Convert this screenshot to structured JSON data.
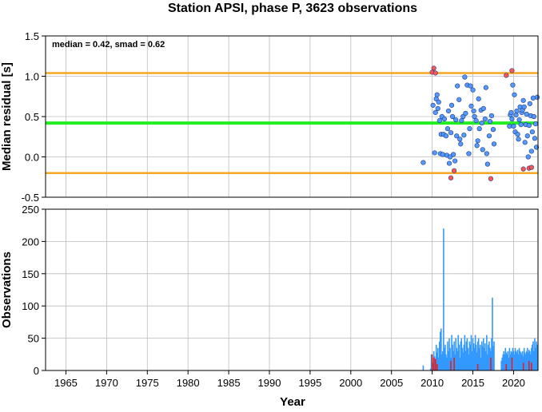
{
  "title": "Station APSI, phase P, 3623 observations",
  "colors": {
    "median_line": "#22ee22",
    "smad_lines": "#f5a623",
    "inlier_point": "#5599ff",
    "outlier_point": "#ff5555",
    "hist_total": "#3399ff",
    "hist_outlier": "#e02020",
    "grid": "#bbbbbb"
  },
  "chart_data": [
    {
      "type": "scatter",
      "panel": "top",
      "ylabel": "Median residual [s]",
      "annotation": "median = 0.42, smad = 0.62",
      "xlim": [
        1962.5,
        2023
      ],
      "ylim": [
        -0.5,
        1.5
      ],
      "yticks": [
        "-0.5",
        "0.0",
        "0.5",
        "1.0",
        "1.5"
      ],
      "ytick_values": [
        -0.5,
        0.0,
        0.5,
        1.0,
        1.5
      ],
      "median": 0.42,
      "upper_bound": 1.04,
      "lower_bound": -0.2,
      "grid": true,
      "series": [
        {
          "role": "inliers",
          "x": [
            2008.9,
            2010.1,
            2010.3,
            2010.4,
            2010.5,
            2010.6,
            2010.7,
            2010.8,
            2010.9,
            2011.0,
            2011.1,
            2011.2,
            2011.3,
            2011.4,
            2011.5,
            2011.7,
            2011.8,
            2011.9,
            2012.0,
            2012.1,
            2012.2,
            2012.3,
            2012.4,
            2012.5,
            2012.6,
            2012.8,
            2012.9,
            2013.0,
            2013.1,
            2013.3,
            2013.4,
            2013.5,
            2013.6,
            2013.8,
            2013.9,
            2014.0,
            2014.1,
            2014.3,
            2014.5,
            2014.6,
            2014.7,
            2014.8,
            2015.0,
            2015.1,
            2015.2,
            2015.4,
            2015.5,
            2015.6,
            2015.7,
            2015.8,
            2016.0,
            2016.1,
            2016.2,
            2016.3,
            2016.5,
            2016.6,
            2016.7,
            2016.8,
            2017.0,
            2017.1,
            2017.3,
            2017.5,
            2017.6,
            2019.5,
            2019.6,
            2019.7,
            2019.8,
            2019.9,
            2020.0,
            2020.1,
            2020.2,
            2020.3,
            2020.4,
            2020.5,
            2020.6,
            2020.7,
            2020.8,
            2020.9,
            2021.0,
            2021.1,
            2021.2,
            2021.3,
            2021.4,
            2021.5,
            2021.6,
            2021.7,
            2021.8,
            2021.9,
            2022.0,
            2022.1,
            2022.2,
            2022.3,
            2022.4,
            2022.5,
            2022.6,
            2022.7,
            2022.8,
            2022.9
          ],
          "y": [
            -0.07,
            0.64,
            0.05,
            0.55,
            0.72,
            0.77,
            0.6,
            0.68,
            0.45,
            0.04,
            0.28,
            0.5,
            0.03,
            0.28,
            0.47,
            0.26,
            0.02,
            0.35,
            0.57,
            -0.08,
            0.0,
            0.3,
            0.64,
            0.5,
            0.03,
            -0.05,
            0.46,
            0.26,
            0.88,
            0.71,
            0.22,
            0.16,
            0.45,
            0.5,
            0.27,
            0.99,
            0.54,
            0.89,
            0.04,
            0.35,
            0.88,
            0.63,
            0.83,
            0.57,
            0.5,
            0.45,
            0.14,
            0.2,
            0.72,
            0.35,
            0.58,
            0.42,
            0.09,
            0.6,
            0.47,
            0.86,
            0.04,
            -0.09,
            0.26,
            0.44,
            0.51,
            0.34,
            0.16,
            0.38,
            0.52,
            0.55,
            0.47,
            0.89,
            0.38,
            0.77,
            0.31,
            0.52,
            0.57,
            0.28,
            0.22,
            0.46,
            0.62,
            0.4,
            0.55,
            0.58,
            0.7,
            0.62,
            0.18,
            0.4,
            0.53,
            0.26,
            0.0,
            0.39,
            0.66,
            0.51,
            0.07,
            0.31,
            0.73,
            0.5,
            0.23,
            0.41,
            0.12,
            0.74
          ]
        },
        {
          "role": "outliers",
          "x": [
            2010.0,
            2010.2,
            2010.4,
            2012.3,
            2012.7,
            2017.2,
            2019.1,
            2019.8,
            2021.2,
            2021.9,
            2022.2
          ],
          "y": [
            1.05,
            1.1,
            1.04,
            -0.26,
            -0.17,
            -0.27,
            1.01,
            1.07,
            -0.15,
            -0.14,
            -0.13
          ]
        }
      ]
    },
    {
      "type": "bar",
      "panel": "bottom",
      "xlabel": "Year",
      "ylabel": "Observations",
      "xlim": [
        1962.5,
        2023
      ],
      "ylim": [
        0,
        250
      ],
      "xticks": [
        "1965",
        "1970",
        "1975",
        "1980",
        "1985",
        "1990",
        "1995",
        "2000",
        "2005",
        "2010",
        "2015",
        "2020"
      ],
      "xtick_values": [
        1965,
        1970,
        1975,
        1980,
        1985,
        1990,
        1995,
        2000,
        2005,
        2010,
        2015,
        2020
      ],
      "yticks": [
        "0",
        "50",
        "100",
        "150",
        "200",
        "250"
      ],
      "ytick_values": [
        0,
        50,
        100,
        150,
        200,
        250
      ],
      "grid": true,
      "series": [
        {
          "role": "total",
          "x": [
            2008.9,
            2009.8,
            2009.9,
            2010.0,
            2010.1,
            2010.2,
            2010.3,
            2010.4,
            2010.5,
            2010.6,
            2010.7,
            2010.8,
            2010.9,
            2011.0,
            2011.1,
            2011.2,
            2011.3,
            2011.4,
            2011.5,
            2011.6,
            2011.7,
            2011.8,
            2011.9,
            2012.0,
            2012.1,
            2012.2,
            2012.3,
            2012.4,
            2012.5,
            2012.6,
            2012.7,
            2012.8,
            2012.9,
            2013.0,
            2013.1,
            2013.2,
            2013.3,
            2013.4,
            2013.5,
            2013.6,
            2013.7,
            2013.8,
            2013.9,
            2014.0,
            2014.1,
            2014.2,
            2014.3,
            2014.4,
            2014.5,
            2014.6,
            2014.7,
            2014.8,
            2014.9,
            2015.0,
            2015.1,
            2015.2,
            2015.3,
            2015.4,
            2015.5,
            2015.6,
            2015.7,
            2015.8,
            2015.9,
            2016.0,
            2016.1,
            2016.2,
            2016.3,
            2016.4,
            2016.5,
            2016.6,
            2016.7,
            2016.8,
            2016.9,
            2017.0,
            2017.1,
            2017.2,
            2017.3,
            2017.4,
            2017.5,
            2017.6,
            2018.5,
            2018.6,
            2018.7,
            2018.8,
            2018.9,
            2019.0,
            2019.1,
            2019.2,
            2019.3,
            2019.4,
            2019.5,
            2019.6,
            2019.7,
            2019.8,
            2019.9,
            2020.0,
            2020.1,
            2020.2,
            2020.3,
            2020.4,
            2020.5,
            2020.6,
            2020.7,
            2020.8,
            2020.9,
            2021.0,
            2021.1,
            2021.2,
            2021.3,
            2021.4,
            2021.5,
            2021.6,
            2021.7,
            2021.8,
            2021.9,
            2022.0,
            2022.1,
            2022.2,
            2022.3,
            2022.4,
            2022.5,
            2022.6,
            2022.7,
            2022.8,
            2022.9
          ],
          "values": [
            8,
            3,
            25,
            18,
            12,
            30,
            22,
            15,
            40,
            28,
            35,
            20,
            45,
            60,
            65,
            25,
            30,
            220,
            35,
            40,
            25,
            20,
            45,
            30,
            50,
            35,
            20,
            55,
            40,
            30,
            45,
            25,
            50,
            35,
            30,
            55,
            40,
            20,
            45,
            50,
            35,
            28,
            40,
            55,
            30,
            45,
            50,
            35,
            25,
            45,
            40,
            55,
            30,
            50,
            42,
            35,
            55,
            40,
            28,
            45,
            50,
            35,
            40,
            20,
            45,
            38,
            50,
            35,
            42,
            30,
            55,
            25,
            40,
            45,
            35,
            30,
            50,
            113,
            38,
            45,
            15,
            20,
            25,
            30,
            25,
            35,
            28,
            25,
            30,
            20,
            35,
            25,
            30,
            28,
            35,
            30,
            25,
            35,
            30,
            28,
            32,
            25,
            35,
            30,
            28,
            25,
            30,
            22,
            35,
            28,
            25,
            30,
            35,
            28,
            32,
            30,
            25,
            35,
            40,
            45,
            30,
            50,
            35,
            45,
            40
          ]
        },
        {
          "role": "outliers",
          "x": [
            2010.0,
            2010.2,
            2010.4,
            2010.6,
            2012.3,
            2012.7,
            2015.6,
            2017.2,
            2019.1,
            2019.8,
            2021.2,
            2021.9,
            2022.2
          ],
          "values": [
            25,
            20,
            18,
            10,
            15,
            20,
            10,
            20,
            10,
            20,
            12,
            15,
            12
          ]
        }
      ]
    }
  ]
}
